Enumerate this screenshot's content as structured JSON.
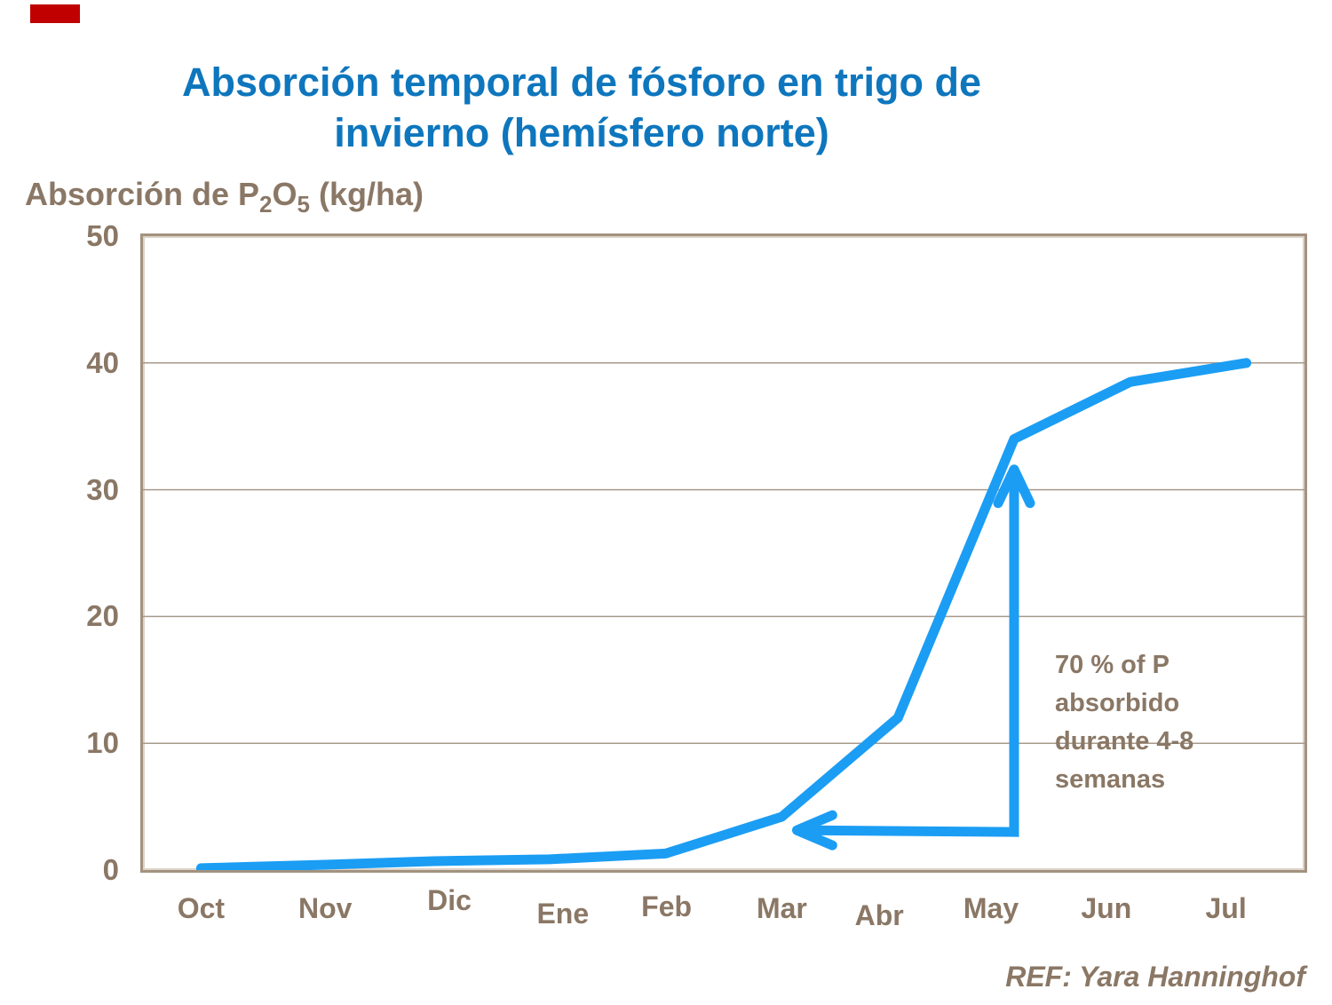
{
  "title": {
    "text": "Absorción temporal de fósforo en trigo de\ninvierno (hemísfero norte)"
  },
  "y_axis": {
    "t1": "Absorción de P",
    "sub1": "2",
    "t2": "O",
    "sub2": "5",
    "t3": " (kg/ha)"
  },
  "footer": {
    "ref": "REF: Yara Hanninghof"
  },
  "colors": {
    "title_blue": "#0e76bd",
    "curve_blue": "#1b9df4",
    "text_brown": "#8a7765",
    "grid_line": "#a79a8b",
    "frame_border": "#a2927f",
    "accent_red": "#c00000"
  },
  "chart_data": {
    "type": "line",
    "title": "Absorción temporal de fósforo en trigo de invierno (hemísfero norte)",
    "ylabel": "Absorción de P2O5 (kg/ha)",
    "xlabel": "",
    "categories": [
      "Oct",
      "Nov",
      "Dic",
      "Ene",
      "Feb",
      "Mar",
      "Abr",
      "May",
      "Jun",
      "Jul"
    ],
    "values": [
      0.15,
      0.4,
      0.7,
      0.85,
      1.3,
      4.2,
      12,
      34,
      38.5,
      40
    ],
    "ylim": [
      0,
      50
    ],
    "yticks": [
      0,
      10,
      20,
      30,
      40,
      50
    ],
    "grid": "horizontal gridlines on",
    "legend": "none",
    "line_color": "#1b9df4",
    "annotation": {
      "text": "70 % of P\nabsorbido\ndurante 4-8\nsemanas",
      "arrow": {
        "elbow_index": 7,
        "tip_index": 5.13,
        "base_value": 3.0,
        "top_value": 31.6
      }
    }
  }
}
